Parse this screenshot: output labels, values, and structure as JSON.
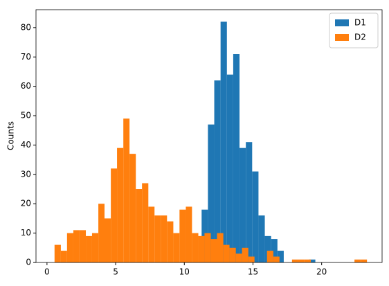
{
  "chart_data": {
    "type": "histogram",
    "ylabel": "Counts",
    "xlim": [
      -0.8,
      24.4
    ],
    "xticks": [
      0,
      5,
      10,
      15,
      20
    ],
    "ylim": [
      0,
      86.1
    ],
    "yticks": [
      0,
      10,
      20,
      30,
      40,
      50,
      60,
      70,
      80
    ],
    "legend": "upper right",
    "series": [
      {
        "name": "D1",
        "color": "#1f77b4",
        "bins": [
          11.26,
          11.72,
          12.18,
          12.64,
          13.1,
          13.56,
          14.02,
          14.48,
          14.94,
          15.4,
          15.86,
          16.32,
          16.78,
          17.24,
          17.7,
          18.16,
          18.62,
          19.08,
          19.54
        ],
        "values": [
          18,
          47,
          62,
          82,
          64,
          71,
          39,
          41,
          31,
          16,
          9,
          8,
          4,
          0,
          0,
          0,
          0,
          1
        ]
      },
      {
        "name": "D2",
        "color": "#ff7f0e",
        "bins": [
          0.55,
          1.01,
          1.46,
          1.92,
          2.37,
          2.83,
          3.28,
          3.74,
          4.19,
          4.65,
          5.1,
          5.56,
          6.01,
          6.47,
          6.92,
          7.38,
          7.83,
          8.29,
          8.74,
          9.2,
          9.65,
          10.11,
          10.56,
          11.02,
          11.47,
          11.93,
          12.38,
          12.84,
          13.29,
          13.75,
          14.2,
          14.66,
          15.11,
          15.57,
          16.02,
          16.48,
          16.93,
          17.39,
          17.84,
          18.3,
          18.75,
          19.21,
          19.66,
          20.12,
          20.57,
          21.03,
          21.48,
          21.94,
          22.39,
          22.85,
          23.3
        ],
        "values": [
          6,
          4,
          10,
          11,
          11,
          9,
          10,
          20,
          15,
          32,
          39,
          49,
          37,
          25,
          27,
          19,
          16,
          16,
          14,
          10,
          18,
          19,
          10,
          9,
          10,
          8,
          10,
          6,
          5,
          3,
          5,
          2,
          0,
          0,
          4,
          2,
          0,
          0,
          1,
          1,
          1,
          0,
          0,
          0,
          0,
          0,
          0,
          0,
          1,
          1
        ]
      }
    ]
  }
}
